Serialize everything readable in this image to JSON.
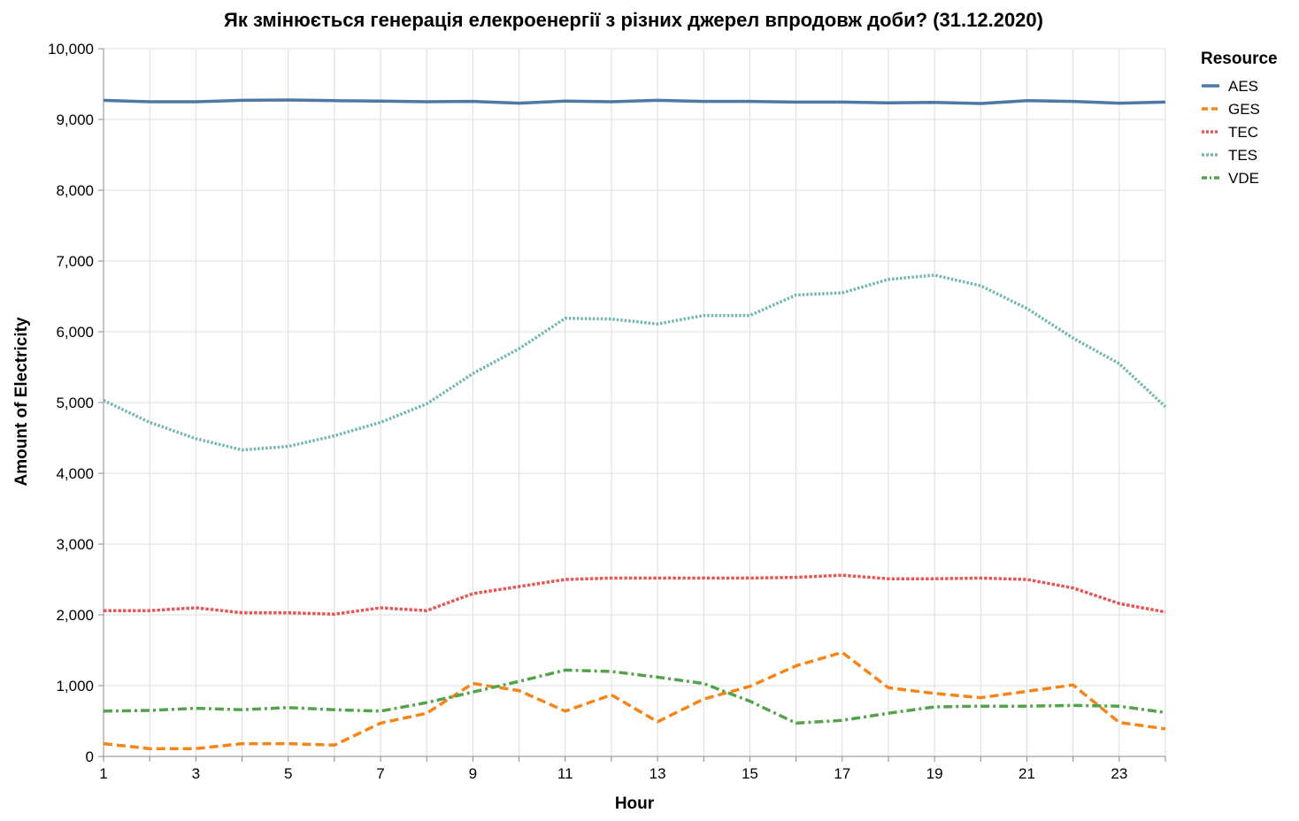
{
  "chart_data": {
    "type": "line",
    "title": "Як змінюється генерація елекроенергії з різних джерел впродовж доби? (31.12.2020)",
    "xlabel": "Hour",
    "ylabel": "Amount of Electricity",
    "xlim": [
      1,
      24
    ],
    "ylim": [
      0,
      10000
    ],
    "x_ticks": [
      1,
      3,
      5,
      7,
      9,
      11,
      13,
      15,
      17,
      19,
      21,
      23
    ],
    "y_ticks": [
      0,
      1000,
      2000,
      3000,
      4000,
      5000,
      6000,
      7000,
      8000,
      9000,
      10000
    ],
    "y_tick_labels": [
      "0",
      "1,000",
      "2,000",
      "3,000",
      "4,000",
      "5,000",
      "6,000",
      "7,000",
      "8,000",
      "9,000",
      "10,000"
    ],
    "grid": true,
    "legend": {
      "title": "Resource",
      "position": "right"
    },
    "x": [
      1,
      2,
      3,
      4,
      5,
      6,
      7,
      8,
      9,
      10,
      11,
      12,
      13,
      14,
      15,
      16,
      17,
      18,
      19,
      20,
      21,
      22,
      23,
      24
    ],
    "series": [
      {
        "name": "AES",
        "color": "#4c78a8",
        "dash": "solid",
        "values": [
          9270,
          9250,
          9250,
          9270,
          9275,
          9265,
          9260,
          9250,
          9255,
          9230,
          9260,
          9250,
          9270,
          9255,
          9255,
          9245,
          9245,
          9235,
          9240,
          9225,
          9265,
          9255,
          9230,
          9245
        ]
      },
      {
        "name": "GES",
        "color": "#f58518",
        "dash": "dashed",
        "values": [
          180,
          110,
          110,
          180,
          180,
          160,
          470,
          610,
          1030,
          930,
          640,
          870,
          490,
          810,
          990,
          1280,
          1470,
          970,
          890,
          830,
          920,
          1010,
          480,
          390
        ]
      },
      {
        "name": "TEC",
        "color": "#e45756",
        "dash": "dotted",
        "values": [
          2060,
          2060,
          2100,
          2030,
          2030,
          2010,
          2100,
          2060,
          2300,
          2400,
          2500,
          2520,
          2520,
          2520,
          2520,
          2530,
          2560,
          2510,
          2510,
          2520,
          2500,
          2380,
          2160,
          2040
        ]
      },
      {
        "name": "TES",
        "color": "#72b7b2",
        "dash": "dotted-fine",
        "values": [
          5030,
          4720,
          4490,
          4330,
          4380,
          4530,
          4720,
          4980,
          5410,
          5760,
          6190,
          6180,
          6110,
          6230,
          6230,
          6520,
          6550,
          6740,
          6800,
          6650,
          6330,
          5910,
          5550,
          4940
        ]
      },
      {
        "name": "VDE",
        "color": "#54a24b",
        "dash": "dash-dot",
        "values": [
          640,
          650,
          680,
          660,
          690,
          660,
          640,
          760,
          910,
          1060,
          1220,
          1200,
          1120,
          1030,
          780,
          470,
          510,
          610,
          700,
          710,
          710,
          720,
          710,
          620
        ]
      }
    ]
  }
}
